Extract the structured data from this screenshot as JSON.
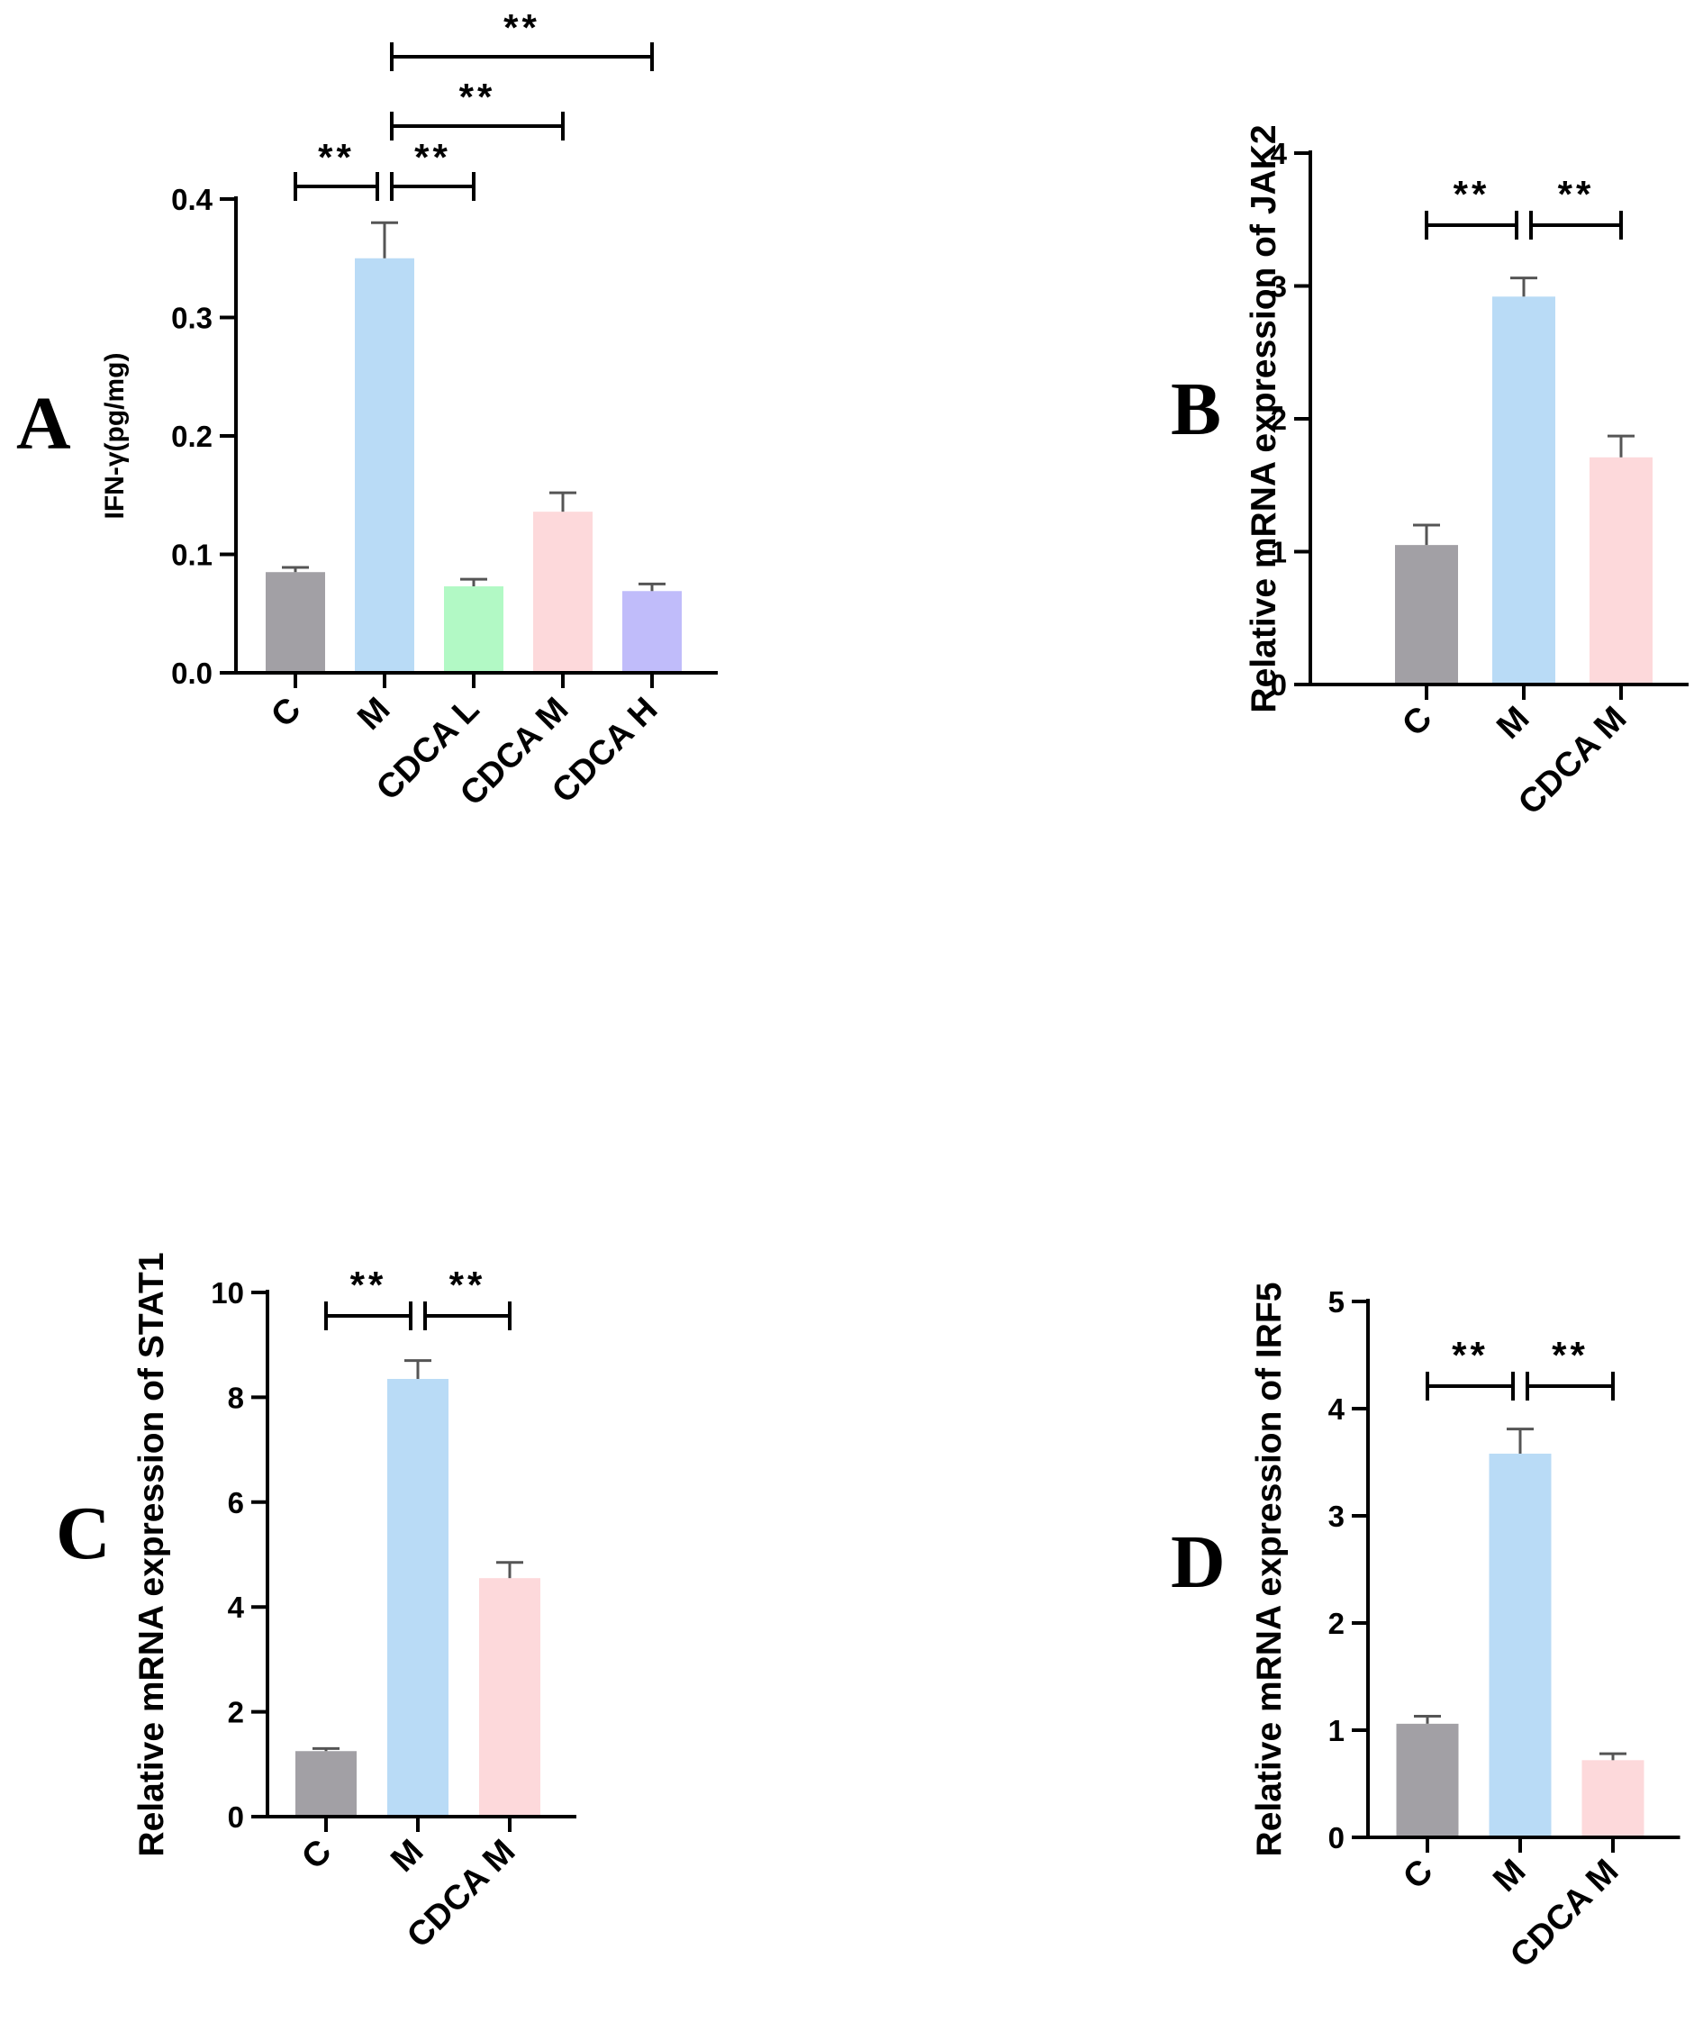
{
  "chart_data": [
    {
      "panel": "A",
      "type": "bar",
      "categories": [
        "C",
        "M",
        "CDCA L",
        "CDCA M",
        "CDCA H"
      ],
      "values": [
        0.085,
        0.35,
        0.073,
        0.136,
        0.069
      ],
      "errors": [
        0.004,
        0.03,
        0.006,
        0.016,
        0.006
      ],
      "colors": [
        "#a2a0a5",
        "#b9dbf6",
        "#b2f9c5",
        "#fdd9db",
        "#c0bcfa"
      ],
      "ylabel": "IFN-γ(pg/mg)",
      "ylim": [
        0,
        0.4
      ],
      "yticks": [
        0.0,
        0.1,
        0.2,
        0.3,
        0.4
      ],
      "ytick_labels": [
        "0.0",
        "0.1",
        "0.2",
        "0.3",
        "0.4"
      ],
      "comparisons": [
        {
          "from": 0,
          "to": 1,
          "label": "**"
        },
        {
          "from": 1,
          "to": 2,
          "label": "**"
        },
        {
          "from": 1,
          "to": 3,
          "label": "**"
        },
        {
          "from": 1,
          "to": 4,
          "label": "**"
        }
      ]
    },
    {
      "panel": "B",
      "type": "bar",
      "categories": [
        "C",
        "M",
        "CDCA M"
      ],
      "values": [
        1.05,
        2.92,
        1.71
      ],
      "errors": [
        0.15,
        0.14,
        0.16
      ],
      "colors": [
        "#a2a0a5",
        "#b9dbf6",
        "#fdd9db"
      ],
      "ylabel": "Relative mRNA expression of JAK2",
      "ylim": [
        0,
        4
      ],
      "yticks": [
        0,
        1,
        2,
        3,
        4
      ],
      "ytick_labels": [
        "0",
        "1",
        "2",
        "3",
        "4"
      ],
      "comparisons": [
        {
          "from": 0,
          "to": 1,
          "label": "**"
        },
        {
          "from": 1,
          "to": 2,
          "label": "**"
        }
      ]
    },
    {
      "panel": "C",
      "type": "bar",
      "categories": [
        "C",
        "M",
        "CDCA M"
      ],
      "values": [
        1.25,
        8.35,
        4.55
      ],
      "errors": [
        0.05,
        0.35,
        0.3
      ],
      "colors": [
        "#a2a0a5",
        "#b9dbf6",
        "#fdd9db"
      ],
      "ylabel": "Relative mRNA expression of STAT1",
      "ylim": [
        0,
        10
      ],
      "yticks": [
        0,
        2,
        4,
        6,
        8,
        10
      ],
      "ytick_labels": [
        "0",
        "2",
        "4",
        "6",
        "8",
        "10"
      ],
      "comparisons": [
        {
          "from": 0,
          "to": 1,
          "label": "**"
        },
        {
          "from": 1,
          "to": 2,
          "label": "**"
        }
      ]
    },
    {
      "panel": "D",
      "type": "bar",
      "categories": [
        "C",
        "M",
        "CDCA M"
      ],
      "values": [
        1.06,
        3.58,
        0.72
      ],
      "errors": [
        0.07,
        0.23,
        0.06
      ],
      "colors": [
        "#a2a0a5",
        "#b9dbf6",
        "#fdd9db"
      ],
      "ylabel": "Relative mRNA expression of IRF5",
      "ylim": [
        0,
        5
      ],
      "yticks": [
        0,
        1,
        2,
        3,
        4,
        5
      ],
      "ytick_labels": [
        "0",
        "1",
        "2",
        "3",
        "4",
        "5"
      ],
      "comparisons": [
        {
          "from": 0,
          "to": 1,
          "label": "**"
        },
        {
          "from": 1,
          "to": 2,
          "label": "**"
        }
      ]
    }
  ]
}
